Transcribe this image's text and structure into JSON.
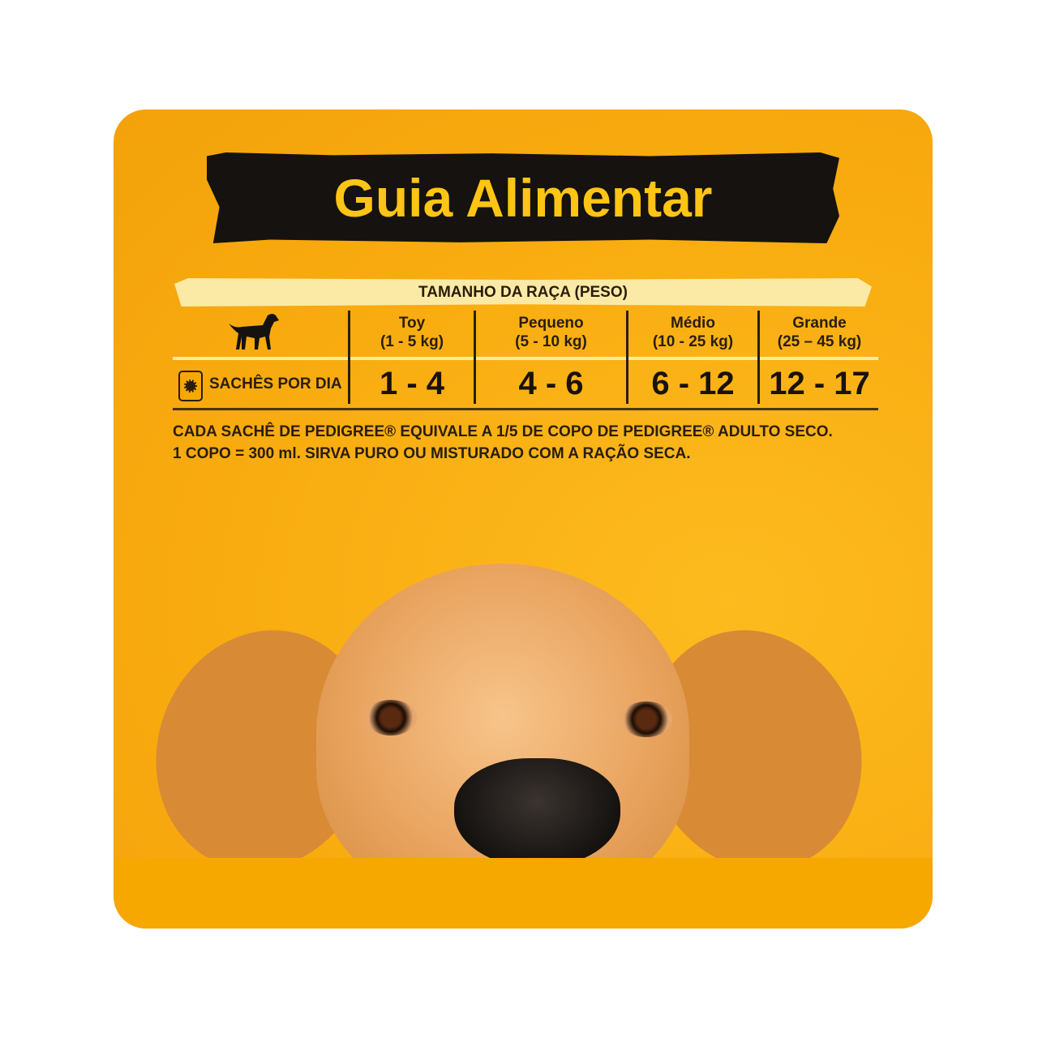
{
  "title": "Guia Alimentar",
  "table": {
    "header": "TAMANHO DA RAÇA (PESO)",
    "row_label": "SACHÊS POR DIA",
    "columns": [
      {
        "name": "Toy",
        "weight": "(1 - 5 kg)",
        "sachets": "1 - 4"
      },
      {
        "name": "Pequeno",
        "weight": "(5 - 10 kg)",
        "sachets": "4 - 6"
      },
      {
        "name": "Médio",
        "weight": "(10 - 25 kg)",
        "sachets": "6 - 12"
      },
      {
        "name": "Grande",
        "weight": "(25 – 45 kg)",
        "sachets": "12 - 17"
      }
    ]
  },
  "note": {
    "line1": "CADA SACHÊ DE PEDIGREE® EQUIVALE A 1/5 DE COPO DE PEDIGREE® ADULTO SECO.",
    "line2": "1 COPO = 300 ml. SIRVA PURO OU MISTURADO COM A RAÇÃO SECA."
  },
  "colors": {
    "background": "#F8AB0F",
    "title": "#FFC414",
    "banner": "#151210",
    "band": "#FBEAA6"
  },
  "icons": [
    "dog-silhouette-icon",
    "sachet-icon"
  ]
}
